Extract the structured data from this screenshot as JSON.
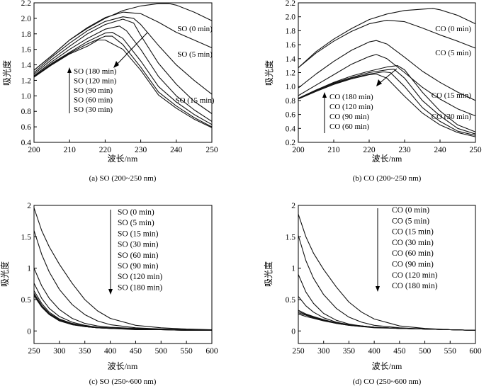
{
  "chart_data": [
    {
      "type": "line",
      "ylabel": "吸光度",
      "xlabel": "波长/nm",
      "caption": "(a) SO (200~250 nm)",
      "xlim": [
        200,
        250
      ],
      "ylim": [
        0.4,
        2.2
      ],
      "xticks": [
        200,
        210,
        220,
        230,
        240,
        250
      ],
      "yticks": [
        0.4,
        0.6,
        0.8,
        1.0,
        1.2,
        1.4,
        1.6,
        1.8,
        2.0,
        2.2
      ],
      "ytick_format": "fixed1",
      "grid": false,
      "series": [
        {
          "name": "SO (0 min)",
          "x": [
            200,
            205,
            210,
            215,
            220,
            225,
            230,
            235,
            238,
            240,
            245,
            250
          ],
          "y": [
            1.33,
            1.52,
            1.72,
            1.87,
            2.0,
            2.1,
            2.16,
            2.19,
            2.19,
            2.17,
            2.08,
            1.97
          ]
        },
        {
          "name": "SO (5 min)",
          "x": [
            200,
            205,
            210,
            215,
            220,
            225,
            230,
            235,
            240,
            245,
            250
          ],
          "y": [
            1.33,
            1.52,
            1.72,
            1.88,
            2.01,
            2.08,
            2.06,
            1.95,
            1.82,
            1.72,
            1.62
          ]
        },
        {
          "name": "SO (15 min)",
          "x": [
            200,
            205,
            210,
            215,
            220,
            225,
            228,
            230,
            235,
            240,
            245,
            250
          ],
          "y": [
            1.3,
            1.5,
            1.68,
            1.84,
            1.96,
            2.02,
            2.0,
            1.92,
            1.65,
            1.4,
            1.2,
            1.02
          ]
        },
        {
          "name": "SO (30 min)",
          "x": [
            200,
            205,
            210,
            215,
            220,
            225,
            228,
            230,
            235,
            240,
            245,
            250
          ],
          "y": [
            1.28,
            1.47,
            1.64,
            1.8,
            1.92,
            1.99,
            1.94,
            1.78,
            1.42,
            1.15,
            0.93,
            0.77
          ]
        },
        {
          "name": "SO (60 min)",
          "x": [
            200,
            205,
            210,
            215,
            220,
            224,
            226,
            230,
            235,
            240,
            245,
            250
          ],
          "y": [
            1.26,
            1.44,
            1.6,
            1.74,
            1.86,
            1.9,
            1.84,
            1.6,
            1.25,
            1.0,
            0.82,
            0.67
          ]
        },
        {
          "name": "SO (90 min)",
          "x": [
            200,
            205,
            210,
            215,
            220,
            222,
            225,
            230,
            235,
            240,
            245,
            250
          ],
          "y": [
            1.25,
            1.42,
            1.56,
            1.7,
            1.81,
            1.82,
            1.74,
            1.45,
            1.12,
            0.92,
            0.76,
            0.63
          ]
        },
        {
          "name": "SO (120 min)",
          "x": [
            200,
            205,
            210,
            215,
            220,
            222,
            225,
            230,
            235,
            240,
            245,
            250
          ],
          "y": [
            1.25,
            1.41,
            1.55,
            1.67,
            1.77,
            1.77,
            1.66,
            1.37,
            1.05,
            0.87,
            0.72,
            0.6
          ]
        },
        {
          "name": "SO (180 min)",
          "x": [
            200,
            205,
            210,
            215,
            218,
            220,
            225,
            230,
            235,
            240,
            245,
            250
          ],
          "y": [
            1.24,
            1.4,
            1.54,
            1.64,
            1.72,
            1.72,
            1.6,
            1.33,
            1.01,
            0.84,
            0.7,
            0.59
          ]
        }
      ],
      "annotations": [
        "SO (0 min)",
        "SO (5 min)",
        "SO (15 min)"
      ],
      "legend": [
        "SO (180 min)",
        "SO (120 min)",
        "SO (90 min)",
        "SO (60 min)",
        "SO (30 min)"
      ]
    },
    {
      "type": "line",
      "ylabel": "吸光度",
      "xlabel": "波长/nm",
      "caption": "(b) CO (200~250 nm)",
      "xlim": [
        200,
        250
      ],
      "ylim": [
        0.2,
        2.2
      ],
      "xticks": [
        200,
        210,
        220,
        230,
        240,
        250
      ],
      "yticks": [
        0.2,
        0.4,
        0.6,
        0.8,
        1.0,
        1.2,
        1.4,
        1.6,
        1.8,
        2.0,
        2.2
      ],
      "ytick_format": "fixed1",
      "grid": false,
      "series": [
        {
          "name": "CO (0 min)",
          "x": [
            200,
            205,
            210,
            215,
            220,
            225,
            230,
            235,
            238,
            240,
            245,
            250
          ],
          "y": [
            1.27,
            1.5,
            1.68,
            1.83,
            1.96,
            2.04,
            2.09,
            2.11,
            2.12,
            2.1,
            2.02,
            1.9
          ]
        },
        {
          "name": "CO (5 min)",
          "x": [
            200,
            205,
            210,
            215,
            220,
            225,
            230,
            235,
            240,
            245,
            250
          ],
          "y": [
            1.27,
            1.48,
            1.65,
            1.79,
            1.9,
            1.95,
            1.93,
            1.84,
            1.74,
            1.65,
            1.55
          ]
        },
        {
          "name": "CO (15 min)",
          "x": [
            200,
            205,
            210,
            215,
            220,
            222,
            225,
            230,
            235,
            240,
            245,
            250
          ],
          "y": [
            0.98,
            1.18,
            1.36,
            1.52,
            1.64,
            1.66,
            1.61,
            1.42,
            1.22,
            1.06,
            0.92,
            0.8
          ]
        },
        {
          "name": "CO (30 min)",
          "x": [
            200,
            205,
            210,
            215,
            220,
            222,
            225,
            230,
            235,
            240,
            245,
            250
          ],
          "y": [
            0.87,
            1.02,
            1.17,
            1.32,
            1.43,
            1.46,
            1.4,
            1.2,
            0.99,
            0.82,
            0.68,
            0.58
          ]
        },
        {
          "name": "CO (60 min)",
          "x": [
            200,
            205,
            210,
            215,
            220,
            225,
            228,
            230,
            235,
            240,
            245,
            250
          ],
          "y": [
            0.83,
            0.95,
            1.06,
            1.15,
            1.22,
            1.28,
            1.3,
            1.24,
            0.92,
            0.65,
            0.45,
            0.35
          ]
        },
        {
          "name": "CO (90 min)",
          "x": [
            200,
            205,
            210,
            215,
            220,
            225,
            227,
            230,
            235,
            240,
            245,
            250
          ],
          "y": [
            0.83,
            0.95,
            1.05,
            1.13,
            1.2,
            1.24,
            1.25,
            1.12,
            0.8,
            0.58,
            0.4,
            0.32
          ]
        },
        {
          "name": "CO (120 min)",
          "x": [
            200,
            205,
            210,
            215,
            220,
            224,
            226,
            230,
            235,
            240,
            245,
            250
          ],
          "y": [
            0.83,
            0.94,
            1.04,
            1.12,
            1.18,
            1.21,
            1.2,
            1.0,
            0.7,
            0.5,
            0.36,
            0.3
          ]
        },
        {
          "name": "CO (180 min)",
          "x": [
            200,
            205,
            210,
            215,
            220,
            222,
            225,
            230,
            235,
            240,
            245,
            250
          ],
          "y": [
            0.82,
            0.93,
            1.03,
            1.11,
            1.17,
            1.18,
            1.12,
            0.86,
            0.62,
            0.45,
            0.34,
            0.28
          ]
        }
      ],
      "annotations": [
        "CO (0 min)",
        "CO (5 min)",
        "CO (15 min)",
        "CO (30 min)"
      ],
      "legend": [
        "CO (180 min)",
        "CO (120 min)",
        "CO (90 min)",
        "CO (60 min)"
      ]
    },
    {
      "type": "line",
      "ylabel": "吸光度",
      "xlabel": "波长/nm",
      "caption": "(c) SO (250~600 nm)",
      "xlim": [
        250,
        600
      ],
      "ylim": [
        -0.2,
        2.0
      ],
      "xticks": [
        250,
        300,
        350,
        400,
        450,
        500,
        550,
        600
      ],
      "yticks": [
        0,
        0.5,
        1.0,
        1.5,
        2.0
      ],
      "ytick_format": "trim",
      "grid": false,
      "series": [
        {
          "name": "SO (0 min)",
          "x": [
            250,
            265,
            280,
            300,
            325,
            350,
            375,
            400,
            450,
            500,
            550,
            600
          ],
          "y": [
            1.96,
            1.6,
            1.34,
            1.06,
            0.76,
            0.5,
            0.32,
            0.2,
            0.09,
            0.05,
            0.03,
            0.02
          ]
        },
        {
          "name": "SO (5 min)",
          "x": [
            250,
            265,
            280,
            300,
            325,
            350,
            375,
            400,
            450,
            500,
            550,
            600
          ],
          "y": [
            1.6,
            1.22,
            0.94,
            0.66,
            0.42,
            0.26,
            0.16,
            0.1,
            0.05,
            0.03,
            0.02,
            0.01
          ]
        },
        {
          "name": "SO (15 min)",
          "x": [
            250,
            265,
            280,
            300,
            325,
            350,
            375,
            400,
            450,
            500,
            550,
            600
          ],
          "y": [
            1.0,
            0.72,
            0.52,
            0.34,
            0.2,
            0.12,
            0.08,
            0.06,
            0.04,
            0.03,
            0.02,
            0.01
          ]
        },
        {
          "name": "SO (30 min)",
          "x": [
            250,
            265,
            280,
            300,
            325,
            350,
            375,
            400,
            450,
            500,
            550,
            600
          ],
          "y": [
            0.76,
            0.52,
            0.36,
            0.23,
            0.14,
            0.09,
            0.06,
            0.05,
            0.03,
            0.02,
            0.02,
            0.01
          ]
        },
        {
          "name": "SO (60 min)",
          "x": [
            250,
            265,
            280,
            300,
            325,
            350,
            375,
            400,
            450,
            500,
            550,
            600
          ],
          "y": [
            0.64,
            0.44,
            0.3,
            0.19,
            0.12,
            0.08,
            0.06,
            0.04,
            0.03,
            0.02,
            0.02,
            0.01
          ]
        },
        {
          "name": "SO (90 min)",
          "x": [
            250,
            265,
            280,
            300,
            325,
            350,
            375,
            400,
            450,
            500,
            550,
            600
          ],
          "y": [
            0.6,
            0.41,
            0.28,
            0.18,
            0.11,
            0.07,
            0.05,
            0.04,
            0.03,
            0.02,
            0.01,
            0.01
          ]
        },
        {
          "name": "SO (120 min)",
          "x": [
            250,
            265,
            280,
            300,
            325,
            350,
            375,
            400,
            450,
            500,
            550,
            600
          ],
          "y": [
            0.58,
            0.39,
            0.27,
            0.17,
            0.1,
            0.07,
            0.05,
            0.04,
            0.03,
            0.02,
            0.01,
            0.01
          ]
        },
        {
          "name": "SO (180 min)",
          "x": [
            250,
            265,
            280,
            300,
            325,
            350,
            375,
            400,
            450,
            500,
            550,
            600
          ],
          "y": [
            0.56,
            0.38,
            0.26,
            0.16,
            0.1,
            0.07,
            0.05,
            0.04,
            0.02,
            0.02,
            0.01,
            0.01
          ]
        }
      ],
      "legend": [
        "SO (0 min)",
        "SO (5 min)",
        "SO (15 min)",
        "SO (30 min)",
        "SO (60 min)",
        "SO (90 min)",
        "SO (120 min)",
        "SO (180 min)"
      ]
    },
    {
      "type": "line",
      "ylabel": "吸光度",
      "xlabel": "波长/nm",
      "caption": "(d) CO (250~600 nm)",
      "xlim": [
        250,
        600
      ],
      "ylim": [
        -0.2,
        2.0
      ],
      "xticks": [
        250,
        300,
        350,
        400,
        450,
        500,
        550,
        600
      ],
      "yticks": [
        0,
        0.5,
        1.0,
        1.5,
        2.0
      ],
      "ytick_format": "trim",
      "grid": false,
      "series": [
        {
          "name": "CO (0 min)",
          "x": [
            250,
            265,
            280,
            300,
            325,
            350,
            375,
            400,
            450,
            500,
            550,
            600
          ],
          "y": [
            1.86,
            1.5,
            1.24,
            0.98,
            0.7,
            0.46,
            0.3,
            0.19,
            0.08,
            0.04,
            0.02,
            0.01
          ]
        },
        {
          "name": "CO (5 min)",
          "x": [
            250,
            265,
            280,
            300,
            325,
            350,
            375,
            400,
            450,
            500,
            550,
            600
          ],
          "y": [
            1.52,
            1.12,
            0.84,
            0.58,
            0.36,
            0.22,
            0.14,
            0.09,
            0.05,
            0.03,
            0.02,
            0.01
          ]
        },
        {
          "name": "CO (15 min)",
          "x": [
            250,
            265,
            280,
            300,
            325,
            350,
            375,
            400,
            450,
            500,
            550,
            600
          ],
          "y": [
            0.9,
            0.62,
            0.44,
            0.28,
            0.17,
            0.11,
            0.08,
            0.06,
            0.04,
            0.03,
            0.02,
            0.01
          ]
        },
        {
          "name": "CO (30 min)",
          "x": [
            250,
            265,
            280,
            300,
            325,
            350,
            375,
            400,
            450,
            500,
            550,
            600
          ],
          "y": [
            0.55,
            0.4,
            0.3,
            0.21,
            0.14,
            0.1,
            0.07,
            0.06,
            0.04,
            0.03,
            0.02,
            0.01
          ]
        },
        {
          "name": "CO (60 min)",
          "x": [
            250,
            265,
            280,
            300,
            325,
            350,
            375,
            400,
            450,
            500,
            550,
            600
          ],
          "y": [
            0.33,
            0.27,
            0.23,
            0.18,
            0.13,
            0.1,
            0.08,
            0.06,
            0.04,
            0.03,
            0.02,
            0.01
          ]
        },
        {
          "name": "CO (90 min)",
          "x": [
            250,
            265,
            280,
            300,
            325,
            350,
            375,
            400,
            450,
            500,
            550,
            600
          ],
          "y": [
            0.31,
            0.26,
            0.22,
            0.17,
            0.13,
            0.1,
            0.08,
            0.06,
            0.04,
            0.03,
            0.02,
            0.01
          ]
        },
        {
          "name": "CO (120 min)",
          "x": [
            250,
            265,
            280,
            300,
            325,
            350,
            375,
            400,
            450,
            500,
            550,
            600
          ],
          "y": [
            0.29,
            0.25,
            0.21,
            0.17,
            0.12,
            0.09,
            0.07,
            0.06,
            0.04,
            0.03,
            0.02,
            0.01
          ]
        },
        {
          "name": "CO (180 min)",
          "x": [
            250,
            265,
            280,
            300,
            325,
            350,
            375,
            400,
            450,
            500,
            550,
            600
          ],
          "y": [
            0.27,
            0.23,
            0.2,
            0.16,
            0.12,
            0.09,
            0.07,
            0.05,
            0.04,
            0.03,
            0.02,
            0.01
          ]
        }
      ],
      "legend": [
        "CO (0 min)",
        "CO (5 min)",
        "CO (15 min)",
        "CO (30 min)",
        "CO (60 min)",
        "CO (90 min)",
        "CO (120 min)",
        "CO (180 min)"
      ]
    }
  ]
}
